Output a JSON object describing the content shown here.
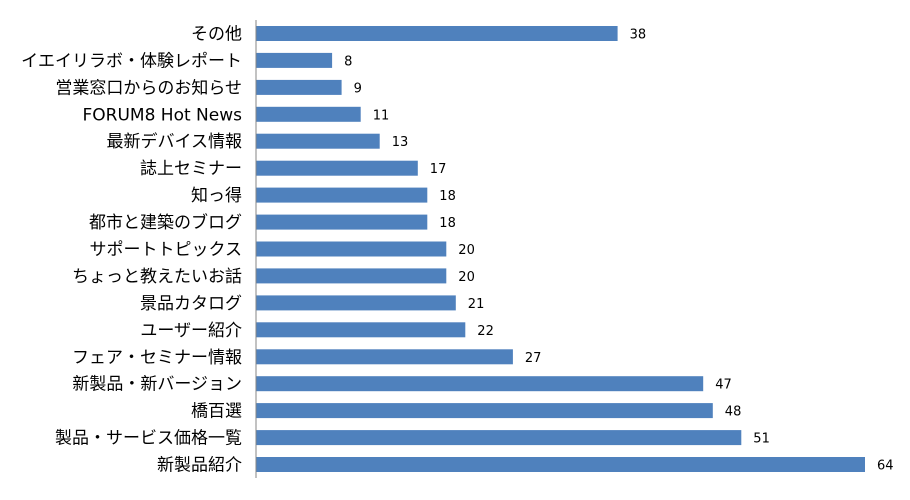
{
  "chart_data": {
    "type": "bar",
    "orientation": "horizontal",
    "categories": [
      "その他",
      "イエイリラボ・体験レポート",
      "営業窓口からのお知らせ",
      "FORUM8 Hot News",
      "最新デバイス情報",
      "誌上セミナー",
      "知っ得",
      "都市と建築のブログ",
      "サポートトピックス",
      "ちょっと教えたいお話",
      "景品カタログ",
      "ユーザー紹介",
      "フェア・セミナー情報",
      "新製品・新バージョン",
      "橋百選",
      "製品・サービス価格一覧",
      "新製品紹介"
    ],
    "values": [
      38,
      8,
      9,
      11,
      13,
      17,
      18,
      18,
      20,
      20,
      21,
      22,
      27,
      47,
      48,
      51,
      64
    ],
    "value_labels": [
      "38",
      "8",
      "9",
      "11",
      "13",
      "17",
      "18",
      "18",
      "20",
      "20",
      "21",
      "22",
      "27",
      "47",
      "48",
      "51",
      "64"
    ],
    "title": "",
    "xlabel": "",
    "ylabel": "",
    "xlim": [
      0,
      64
    ],
    "grid": false,
    "legend": "none",
    "bar_color": "#4f81bd",
    "axis_color": "#868686"
  }
}
